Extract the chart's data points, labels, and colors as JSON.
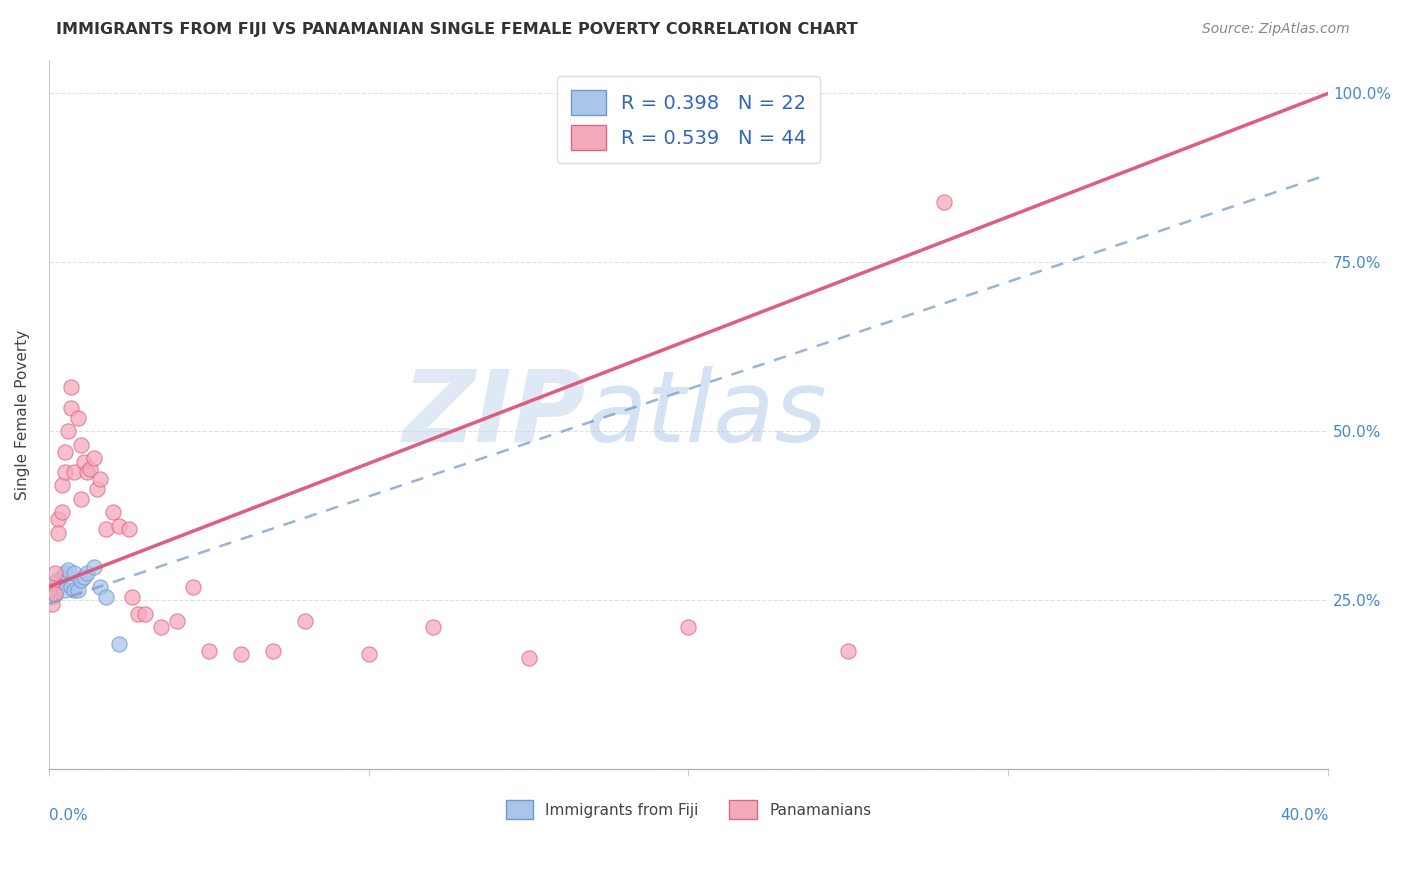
{
  "title": "IMMIGRANTS FROM FIJI VS PANAMANIAN SINGLE FEMALE POVERTY CORRELATION CHART",
  "source": "Source: ZipAtlas.com",
  "ylabel": "Single Female Poverty",
  "legend_entry1": "R = 0.398   N = 22",
  "legend_entry2": "R = 0.539   N = 44",
  "legend_label1": "Immigrants from Fiji",
  "legend_label2": "Panamanians",
  "fiji_color": "#aac4ea",
  "fiji_edge": "#7099cc",
  "panama_color": "#f5aabb",
  "panama_edge": "#dd6688",
  "fiji_line_color": "#7799cc",
  "panama_line_color": "#dd5577",
  "watermark_zip": "ZIP",
  "watermark_atlas": "atlas",
  "background_color": "#ffffff",
  "grid_color": "#dddddd",
  "xmin": 0.0,
  "xmax": 0.4,
  "ymin": 0.0,
  "ymax": 1.05,
  "fiji_line_x0": 0.0,
  "fiji_line_y0": 0.245,
  "fiji_line_x1": 0.4,
  "fiji_line_y1": 0.88,
  "panama_line_x0": 0.0,
  "panama_line_y0": 0.27,
  "panama_line_x1": 0.4,
  "panama_line_y1": 1.0,
  "fiji_x": [
    0.0,
    0.001,
    0.001,
    0.002,
    0.002,
    0.003,
    0.003,
    0.004,
    0.005,
    0.005,
    0.006,
    0.007,
    0.008,
    0.008,
    0.009,
    0.01,
    0.011,
    0.012,
    0.014,
    0.016,
    0.018,
    0.022
  ],
  "fiji_y": [
    0.265,
    0.27,
    0.255,
    0.265,
    0.26,
    0.28,
    0.27,
    0.285,
    0.29,
    0.265,
    0.295,
    0.27,
    0.265,
    0.29,
    0.265,
    0.28,
    0.285,
    0.29,
    0.3,
    0.27,
    0.255,
    0.185
  ],
  "panama_x": [
    0.0,
    0.001,
    0.001,
    0.002,
    0.002,
    0.003,
    0.003,
    0.004,
    0.004,
    0.005,
    0.005,
    0.006,
    0.007,
    0.007,
    0.008,
    0.009,
    0.01,
    0.01,
    0.011,
    0.012,
    0.013,
    0.014,
    0.015,
    0.016,
    0.018,
    0.02,
    0.022,
    0.025,
    0.026,
    0.028,
    0.03,
    0.035,
    0.04,
    0.045,
    0.05,
    0.06,
    0.07,
    0.08,
    0.1,
    0.12,
    0.15,
    0.2,
    0.25,
    0.28
  ],
  "panama_y": [
    0.265,
    0.275,
    0.245,
    0.29,
    0.26,
    0.37,
    0.35,
    0.42,
    0.38,
    0.47,
    0.44,
    0.5,
    0.535,
    0.565,
    0.44,
    0.52,
    0.48,
    0.4,
    0.455,
    0.44,
    0.445,
    0.46,
    0.415,
    0.43,
    0.355,
    0.38,
    0.36,
    0.355,
    0.255,
    0.23,
    0.23,
    0.21,
    0.22,
    0.27,
    0.175,
    0.17,
    0.175,
    0.22,
    0.17,
    0.21,
    0.165,
    0.21,
    0.175,
    0.84
  ]
}
